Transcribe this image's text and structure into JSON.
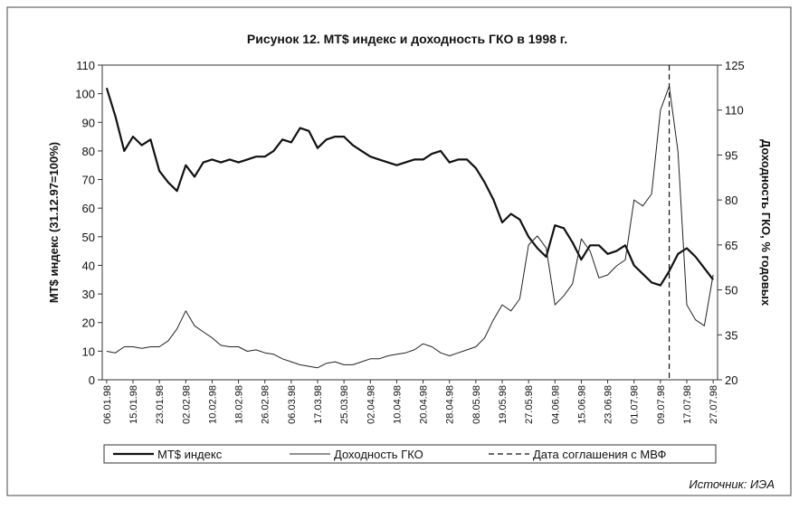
{
  "chart_data": {
    "type": "line",
    "title": "Рисунок 12. MT$ индекс и доходность ГКО в 1998 г.",
    "y_label": "MT$ индекс (31.12.97=100%)",
    "y2_label": "Доходность ГКО, % годовых",
    "source": "Источник: ИЭА",
    "categories": [
      "06.01.98",
      null,
      null,
      "15.01.98",
      null,
      null,
      "23.01.98",
      null,
      null,
      "02.02.98",
      null,
      null,
      "10.02.98",
      null,
      null,
      "18.02.98",
      null,
      null,
      "26.02.98",
      null,
      null,
      "06.03.98",
      null,
      null,
      "17.03.98",
      null,
      null,
      "25.03.98",
      null,
      null,
      "02.04.98",
      null,
      null,
      "10.04.98",
      null,
      null,
      "20.04.98",
      null,
      null,
      "28.04.98",
      null,
      null,
      "08.05.98",
      null,
      null,
      "19.05.98",
      null,
      null,
      "27.05.98",
      null,
      null,
      "04.06.98",
      null,
      null,
      "15.06.98",
      null,
      null,
      "23.06.98",
      null,
      null,
      "01.07.98",
      null,
      null,
      "09.07.98",
      null,
      null,
      "17.07.98",
      null,
      null,
      "27.07.98"
    ],
    "series": [
      {
        "name": "MT$ индекс",
        "color": "#111111",
        "width": 2.2,
        "values": [
          102,
          92,
          80,
          85,
          82,
          84,
          73,
          69,
          66,
          75,
          71,
          76,
          77,
          76,
          77,
          76,
          77,
          78,
          78,
          80,
          84,
          83,
          88,
          87,
          81,
          84,
          85,
          85,
          82,
          80,
          78,
          77,
          76,
          75,
          76,
          77,
          77,
          79,
          80,
          76,
          77,
          77,
          74,
          69,
          63,
          55,
          58,
          56,
          50,
          46,
          43,
          54,
          53,
          48,
          42,
          47,
          47,
          44,
          45,
          47,
          40,
          37,
          34,
          33,
          38,
          44,
          46,
          43,
          39,
          35
        ]
      },
      {
        "name": "Доходность ГКО",
        "color": "#222222",
        "width": 1,
        "axis": "y2",
        "values": [
          29.5,
          29,
          31,
          31,
          30.5,
          31,
          31,
          33,
          37,
          43,
          38,
          36,
          34,
          31.5,
          31,
          31,
          29.5,
          30,
          29,
          28.5,
          27,
          26,
          25,
          24.5,
          24,
          25.5,
          26,
          25,
          25,
          26,
          27,
          27,
          28,
          28.5,
          29,
          30,
          32,
          31,
          29,
          28,
          29,
          30,
          31,
          34,
          40,
          45,
          43,
          47,
          65,
          68,
          64,
          45,
          48,
          52,
          67,
          63,
          54,
          55,
          58,
          60,
          80,
          78,
          82,
          110,
          118,
          96,
          45,
          40,
          38,
          55
        ]
      }
    ],
    "vline": {
      "name": "Дата соглашения с МВФ",
      "at": 64,
      "color": "#111111"
    },
    "ylim": [
      0,
      110
    ],
    "yticks": [
      0,
      10,
      20,
      30,
      40,
      50,
      60,
      70,
      80,
      90,
      100,
      110
    ],
    "y2lim": [
      20,
      125
    ],
    "y2ticks": [
      20,
      35,
      50,
      65,
      80,
      95,
      110,
      125
    ],
    "grid": false
  }
}
